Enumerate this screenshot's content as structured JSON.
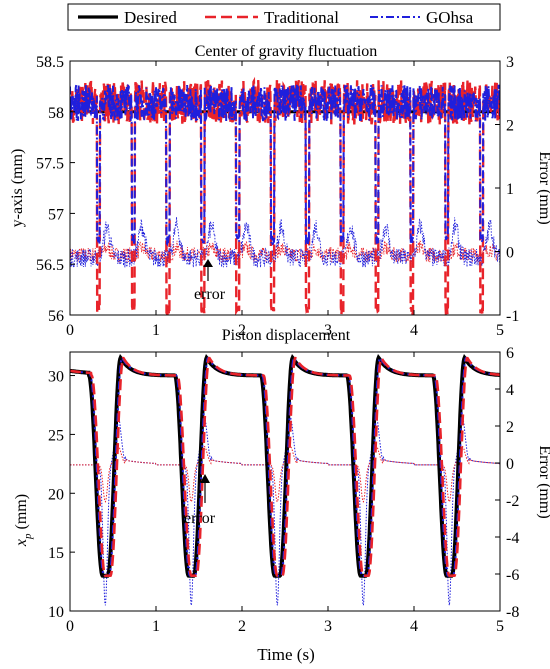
{
  "legend": {
    "entries": [
      {
        "label": "Desired",
        "color": "#000000",
        "style": "solid"
      },
      {
        "label": "Traditional",
        "color": "#e8232a",
        "style": "dashed"
      },
      {
        "label": "GOhsa",
        "color": "#1f1fdc",
        "style": "dashdot"
      }
    ],
    "placement": "top"
  },
  "chart_data": [
    {
      "type": "line",
      "title": "Center of gravity fluctuation",
      "xlabel": "",
      "ylabel": "y-axis (mm)",
      "y2label": "Error (mm)",
      "xlim": [
        0,
        5
      ],
      "ylim": [
        56,
        58.5
      ],
      "y2lim": [
        -1,
        3
      ],
      "xticks": [
        "0",
        "1",
        "2",
        "3",
        "4",
        "5"
      ],
      "yticks": [
        "56",
        "56.5",
        "57",
        "57.5",
        "58",
        "58.5"
      ],
      "y2ticks": [
        "-1",
        "0",
        "1",
        "2",
        "3"
      ],
      "annotation": "error",
      "annotation_point": [
        1.6,
        56.42
      ],
      "period": 0.405,
      "first_dip": 0.33,
      "series": [
        {
          "name": "Desired",
          "axis": "left",
          "baseline": 58.0,
          "dip_min": 58.0,
          "jitter": 0.0
        },
        {
          "name": "Traditional",
          "axis": "left",
          "baseline": 58.05,
          "dip_min": 56.0,
          "jitter": 0.22
        },
        {
          "name": "GOhsa",
          "axis": "left",
          "baseline": 58.05,
          "dip_min": 56.7,
          "jitter": 0.18
        },
        {
          "name": "Traditional error",
          "axis": "right",
          "baseline": -0.05,
          "peak": 0.1,
          "jitter": 0.12
        },
        {
          "name": "GOhsa error",
          "axis": "right",
          "baseline": -0.1,
          "peak": 0.5,
          "jitter": 0.15
        }
      ]
    },
    {
      "type": "line",
      "title": "Piston displacement",
      "xlabel": "Time (s)",
      "ylabel": "x_p (mm)",
      "y2label": "Error (mm)",
      "xlim": [
        0,
        5
      ],
      "ylim": [
        10,
        32
      ],
      "y2lim": [
        -8,
        6
      ],
      "xticks": [
        "0",
        "1",
        "2",
        "3",
        "4",
        "5"
      ],
      "yticks": [
        "10",
        "15",
        "20",
        "25",
        "30"
      ],
      "y2ticks": [
        "-8",
        "-6",
        "-4",
        "-2",
        "0",
        "2",
        "4",
        "6"
      ],
      "annotation": "error",
      "annotation_point": [
        1.63,
        22.0
      ],
      "period": 1.0,
      "cycle_starts": [
        0.22,
        1.22,
        2.22,
        3.22,
        4.22
      ],
      "series": [
        {
          "name": "Desired",
          "axis": "left",
          "top": 31.5,
          "plateau": 30.0,
          "bottom": 13.0
        },
        {
          "name": "Traditional",
          "axis": "left",
          "top": 31.5,
          "plateau": 30.0,
          "bottom": 13.0,
          "lag": 0.03
        },
        {
          "name": "GOhsa",
          "axis": "left",
          "top": 31.5,
          "plateau": 30.0,
          "bottom": 13.0,
          "lag": 0.015
        },
        {
          "name": "GOhsa error",
          "axis": "right",
          "baseline": -0.1,
          "neg_peak": -7.6,
          "pos_peak": 2.6
        },
        {
          "name": "Traditional error",
          "axis": "right",
          "baseline": -0.1,
          "neg_peak": -2.0,
          "pos_peak": 1.0
        }
      ]
    }
  ]
}
